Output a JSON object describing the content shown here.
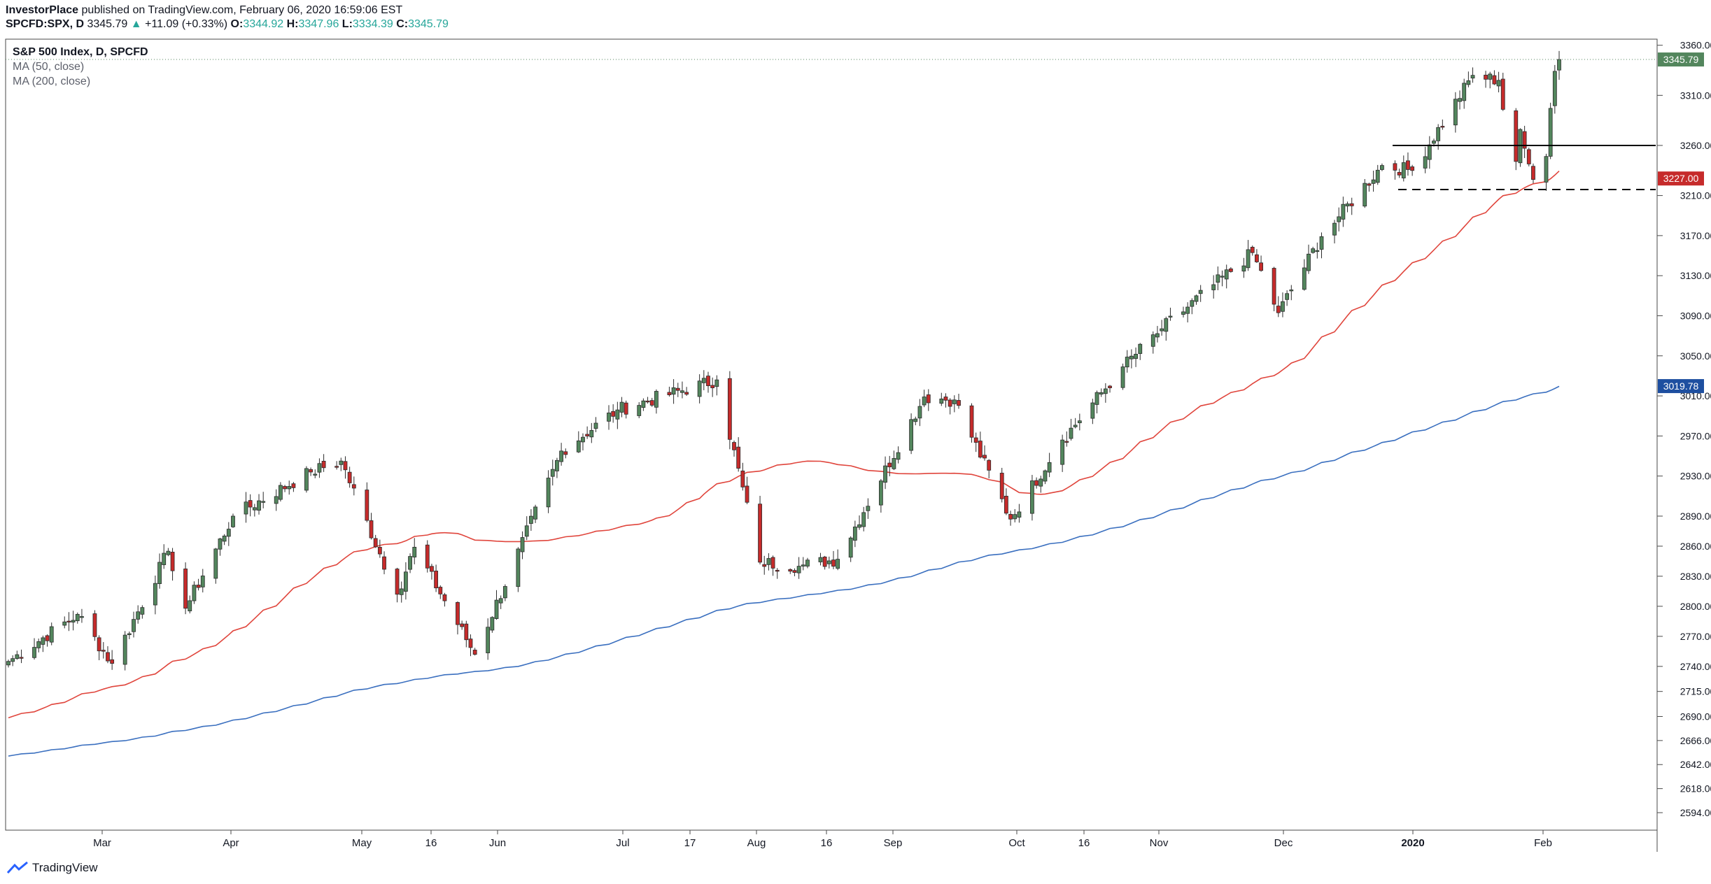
{
  "header": {
    "publisher": "InvestorPlace",
    "published_text": "published on TradingView.com, February 06, 2020 16:59:06 EST",
    "symbol": "SPCFD:SPX, D",
    "last": "3345.79",
    "change": "+11.09 (+0.33%)",
    "o_label": "O:",
    "o_value": "3344.92",
    "h_label": "H:",
    "h_value": "3347.96",
    "l_label": "L:",
    "l_value": "3334.39",
    "c_label": "C:",
    "c_value": "3345.79"
  },
  "legend": {
    "title": "S&P 500 Index, D, SPCFD",
    "ma50": "MA (50, close)",
    "ma200": "MA (200, close)"
  },
  "footer": {
    "brand": "TradingView"
  },
  "colors": {
    "up": "#53865d",
    "down": "#c62b2b",
    "ma50": "#e0453c",
    "ma200": "#3a6fbf",
    "last_price_badge": "#53865d",
    "ma50_badge": "#c62b2b",
    "ma200_badge": "#1e4fa0"
  },
  "chart_data": {
    "type": "candlestick",
    "y_ticks": [
      "3360.00",
      "3310.00",
      "3260.00",
      "3210.00",
      "3170.00",
      "3130.00",
      "3090.00",
      "3050.00",
      "3010.00",
      "2970.00",
      "2930.00",
      "2890.00",
      "2860.00",
      "2830.00",
      "2800.00",
      "2770.00",
      "2740.00",
      "2715.00",
      "2690.00",
      "2666.00",
      "2642.00",
      "2618.00",
      "2594.00"
    ],
    "x_ticks": [
      "Mar",
      "Apr",
      "May",
      "16",
      "Jun",
      "Jul",
      "17",
      "Aug",
      "16",
      "Sep",
      "Oct",
      "16",
      "Nov",
      "Dec",
      "2020",
      "Feb"
    ],
    "price_labels": [
      {
        "value": "3345.79",
        "kind": "last_price"
      },
      {
        "value": "3227.00",
        "kind": "ma50"
      },
      {
        "value": "3019.78",
        "kind": "ma200"
      }
    ],
    "levels": [
      {
        "value": 3260,
        "style": "solid"
      },
      {
        "value": 3216,
        "style": "dashed"
      }
    ],
    "anchors": [
      [
        "2019-02-12",
        2745
      ],
      [
        "2019-02-28",
        2792
      ],
      [
        "2019-03-08",
        2743
      ],
      [
        "2019-03-21",
        2855
      ],
      [
        "2019-03-25",
        2798
      ],
      [
        "2019-04-05",
        2890
      ],
      [
        "2019-04-23",
        2934
      ],
      [
        "2019-04-30",
        2945
      ],
      [
        "2019-05-13",
        2812
      ],
      [
        "2019-05-17",
        2859
      ],
      [
        "2019-05-31",
        2752
      ],
      [
        "2019-06-20",
        2955
      ],
      [
        "2019-07-03",
        2996
      ],
      [
        "2019-07-26",
        3026
      ],
      [
        "2019-08-05",
        2844
      ],
      [
        "2019-08-14",
        2840
      ],
      [
        "2019-08-23",
        2847
      ],
      [
        "2019-09-12",
        3009
      ],
      [
        "2019-09-19",
        3006
      ],
      [
        "2019-10-02",
        2887
      ],
      [
        "2019-10-14",
        2966
      ],
      [
        "2019-10-28",
        3039
      ],
      [
        "2019-11-06",
        3077
      ],
      [
        "2019-11-27",
        3153
      ],
      [
        "2019-12-03",
        3093
      ],
      [
        "2019-12-13",
        3169
      ],
      [
        "2019-12-27",
        3240
      ],
      [
        "2020-01-03",
        3235
      ],
      [
        "2020-01-17",
        3330
      ],
      [
        "2020-01-23",
        3325
      ],
      [
        "2020-01-24",
        3296
      ],
      [
        "2020-01-27",
        3244
      ],
      [
        "2020-01-28",
        3276
      ],
      [
        "2020-01-31",
        3226
      ],
      [
        "2020-02-03",
        3249
      ],
      [
        "2020-02-05",
        3334
      ],
      [
        "2020-02-06",
        3345.79
      ]
    ]
  }
}
